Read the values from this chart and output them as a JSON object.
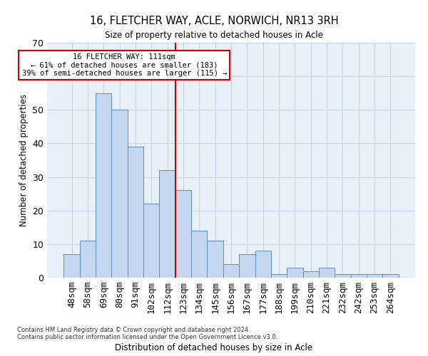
{
  "title": "16, FLETCHER WAY, ACLE, NORWICH, NR13 3RH",
  "subtitle": "Size of property relative to detached houses in Acle",
  "xlabel": "Distribution of detached houses by size in Acle",
  "ylabel": "Number of detached properties",
  "categories": [
    "48sqm",
    "58sqm",
    "69sqm",
    "80sqm",
    "91sqm",
    "102sqm",
    "112sqm",
    "123sqm",
    "134sqm",
    "145sqm",
    "156sqm",
    "167sqm",
    "177sqm",
    "188sqm",
    "199sqm",
    "210sqm",
    "221sqm",
    "232sqm",
    "242sqm",
    "253sqm",
    "264sqm"
  ],
  "bar_heights": [
    7,
    11,
    55,
    50,
    39,
    22,
    32,
    26,
    14,
    11,
    4,
    7,
    8,
    1,
    3,
    2,
    3,
    1,
    1,
    1,
    1
  ],
  "bar_color": "#c5d8ef",
  "bar_edge_color": "#5b8dc8",
  "vline_color": "#cc0000",
  "annotation_box_text": "16 FLETCHER WAY: 111sqm\n← 61% of detached houses are smaller (183)\n39% of semi-detached houses are larger (115) →",
  "annotation_box_color": "#cc0000",
  "annotation_box_fill": "#ffffff",
  "ylim": [
    0,
    70
  ],
  "yticks": [
    0,
    10,
    20,
    30,
    40,
    50,
    60,
    70
  ],
  "grid_color": "#c8d4e8",
  "background_color": "#e8f0f8",
  "footer1": "Contains HM Land Registry data © Crown copyright and database right 2024.",
  "footer2": "Contains public sector information licensed under the Open Government Licence v3.0."
}
